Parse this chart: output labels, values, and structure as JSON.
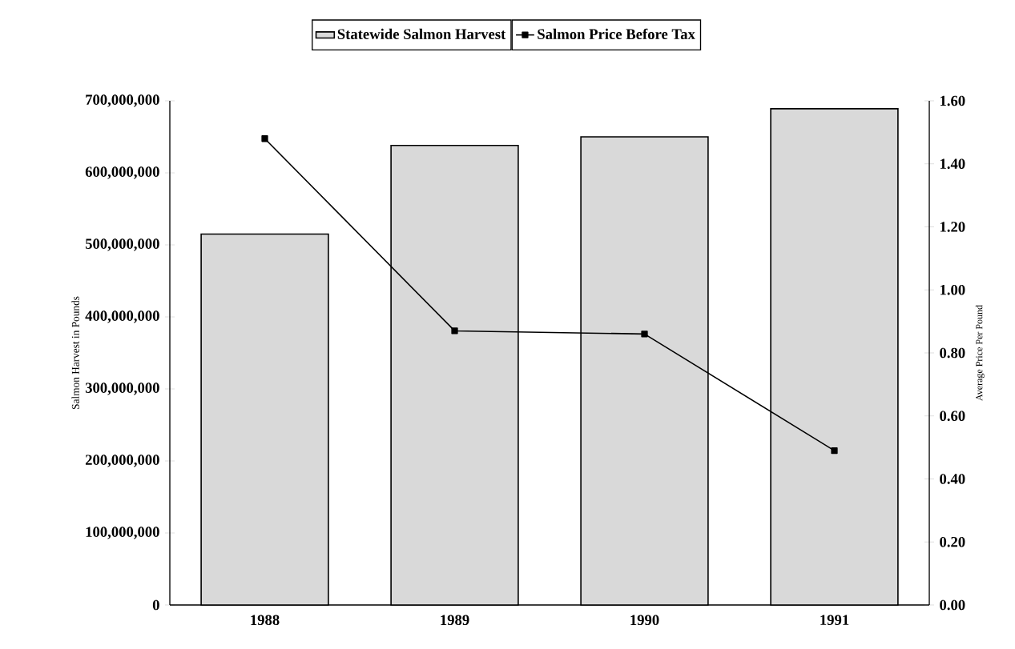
{
  "chart_data": {
    "type": "bar",
    "categories": [
      "1988",
      "1989",
      "1990",
      "1991"
    ],
    "series": [
      {
        "name": "Statewide Salmon Harvest",
        "color": "#d9d9d9",
        "values": [
          515000000,
          638000000,
          650000000,
          689000000
        ]
      },
      {
        "name": "Salmon Price Before Tax",
        "type": "line",
        "axis": "y2",
        "color": "#000000",
        "values": [
          1.48,
          0.87,
          0.86,
          0.49
        ]
      }
    ],
    "ylabel": "Salmon Harvest in Pounds",
    "y2label": "Average Price Per Pound",
    "ylim": [
      0,
      700000000
    ],
    "yticks": [
      {
        "value": 0,
        "label": "0"
      },
      {
        "value": 100000000,
        "label": "100,000,000"
      },
      {
        "value": 200000000,
        "label": "200,000,000"
      },
      {
        "value": 300000000,
        "label": "300,000,000"
      },
      {
        "value": 400000000,
        "label": "400,000,000"
      },
      {
        "value": 500000000,
        "label": "500,000,000"
      },
      {
        "value": 600000000,
        "label": "600,000,000"
      },
      {
        "value": 700000000,
        "label": "700,000,000"
      }
    ],
    "y2lim": [
      0,
      1.6
    ],
    "y2ticks": [
      {
        "value": 0,
        "label": "0.00"
      },
      {
        "value": 0.2,
        "label": "0.20"
      },
      {
        "value": 0.4,
        "label": "0.40"
      },
      {
        "value": 0.6,
        "label": "0.60"
      },
      {
        "value": 0.8,
        "label": "0.80"
      },
      {
        "value": 1.0,
        "label": "1.00"
      },
      {
        "value": 1.2,
        "label": "1.20"
      },
      {
        "value": 1.4,
        "label": "1.40"
      },
      {
        "value": 1.6,
        "label": "1.60"
      }
    ],
    "marker": "square",
    "legend": "top",
    "grid": false
  }
}
